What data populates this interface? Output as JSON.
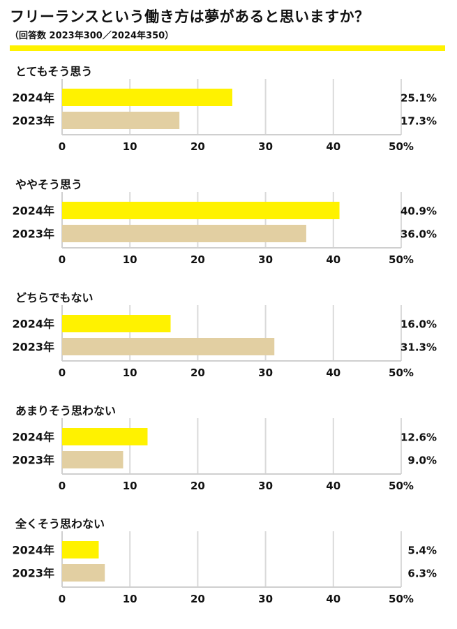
{
  "header": {
    "title": "フリーランスという働き方は夢があると思いますか？",
    "subtitle": "（回答数 2023年300／2024年350）"
  },
  "colors": {
    "accent": "#FFF200",
    "bar_2024": "#FFF200",
    "bar_2023": "#E2CFA2",
    "grid": "#DADADA",
    "axis": "#CFCFCF"
  },
  "chart_data": [
    {
      "type": "bar",
      "orientation": "horizontal",
      "title": "とてもそう思う",
      "categories": [
        "2024年",
        "2023年"
      ],
      "values": [
        25.1,
        17.3
      ],
      "value_labels": [
        "25.1%",
        "17.3%"
      ],
      "xlim": [
        0,
        50
      ],
      "ticks": [
        "0",
        "10",
        "20",
        "30",
        "40",
        "50%"
      ]
    },
    {
      "type": "bar",
      "orientation": "horizontal",
      "title": "ややそう思う",
      "categories": [
        "2024年",
        "2023年"
      ],
      "values": [
        40.9,
        36.0
      ],
      "value_labels": [
        "40.9%",
        "36.0%"
      ],
      "xlim": [
        0,
        50
      ],
      "ticks": [
        "0",
        "10",
        "20",
        "30",
        "40",
        "50%"
      ]
    },
    {
      "type": "bar",
      "orientation": "horizontal",
      "title": "どちらでもない",
      "categories": [
        "2024年",
        "2023年"
      ],
      "values": [
        16.0,
        31.3
      ],
      "value_labels": [
        "16.0%",
        "31.3%"
      ],
      "xlim": [
        0,
        50
      ],
      "ticks": [
        "0",
        "10",
        "20",
        "30",
        "40",
        "50%"
      ]
    },
    {
      "type": "bar",
      "orientation": "horizontal",
      "title": "あまりそう思わない",
      "categories": [
        "2024年",
        "2023年"
      ],
      "values": [
        12.6,
        9.0
      ],
      "value_labels": [
        "12.6%",
        "9.0%"
      ],
      "xlim": [
        0,
        50
      ],
      "ticks": [
        "0",
        "10",
        "20",
        "30",
        "40",
        "50%"
      ]
    },
    {
      "type": "bar",
      "orientation": "horizontal",
      "title": "全くそう思わない",
      "categories": [
        "2024年",
        "2023年"
      ],
      "values": [
        5.4,
        6.3
      ],
      "value_labels": [
        "5.4%",
        "6.3%"
      ],
      "xlim": [
        0,
        50
      ],
      "ticks": [
        "0",
        "10",
        "20",
        "30",
        "40",
        "50%"
      ]
    }
  ]
}
